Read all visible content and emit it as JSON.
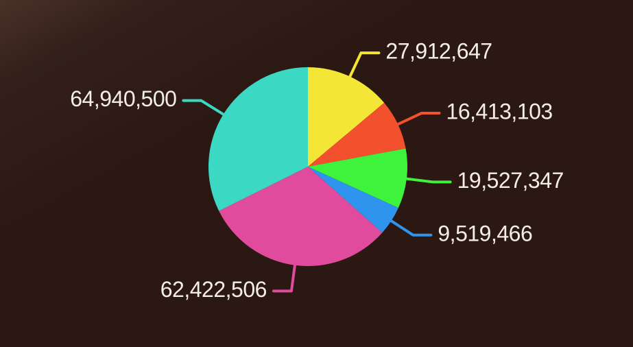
{
  "chart_data": {
    "type": "pie",
    "values": [
      27912647,
      16413103,
      19527347,
      9519466,
      62422506,
      64940500
    ],
    "value_labels": [
      "27,912,647",
      "16,413,103",
      "19,527,347",
      "9,519,466",
      "62,422,506",
      "64,940,500"
    ],
    "colors": [
      "#f4e636",
      "#f3512d",
      "#3ff33c",
      "#2f94ee",
      "#e04b9d",
      "#3bd9c4"
    ]
  }
}
